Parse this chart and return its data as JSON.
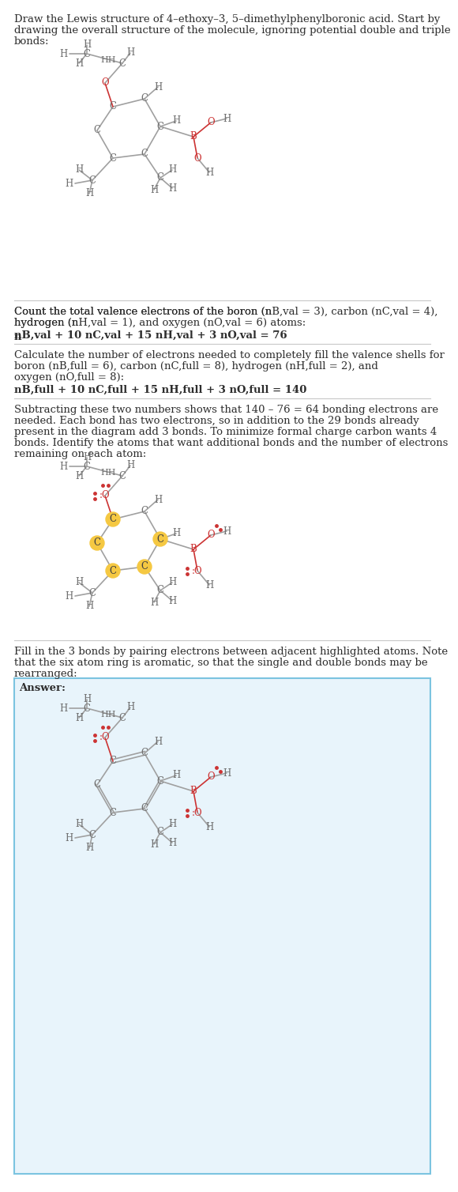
{
  "bg_color": "#ffffff",
  "text_color": "#2d2d2d",
  "bond_color": "#a0a0a0",
  "atom_C_color": "#707070",
  "atom_H_color": "#707070",
  "atom_O_color": "#cc3333",
  "atom_B_color": "#cc3333",
  "highlight_color": "#f5c842",
  "answer_bg": "#e8f4fb",
  "answer_border": "#7bc4e0",
  "title_text": "Draw the Lewis structure of 4–ethoxy–3, 5–dimethylphenylboronic acid. Start by drawing the overall structure of the molecule, ignoring potential double and triple bonds:",
  "section2_text": "Count the total valence electrons of the boron (n_B,val = 3), carbon (n_C,val = 4), hydrogen (n_H,val = 1), and oxygen (n_O,val = 6) atoms:",
  "section2_formula": "n_B,val + 10 n_C,val + 15 n_H,val + 3 n_O,val = 76",
  "section3_text": "Calculate the number of electrons needed to completely fill the valence shells for boron (n_B,full = 6), carbon (n_C,full = 8), hydrogen (n_H,full = 2), and oxygen (n_O,full = 8):",
  "section3_formula": "n_B,full + 10 n_C,full + 15 n_H,full + 3 n_O,full = 140",
  "section4_text": "Subtracting these two numbers shows that 140 – 76 = 64 bonding electrons are needed. Each bond has two electrons, so in addition to the 29 bonds already present in the diagram add 3 bonds. To minimize formal charge carbon wants 4 bonds. Identify the atoms that want additional bonds and the number of electrons remaining on each atom:",
  "section5_text": "Fill in the 3 bonds by pairing electrons between adjacent highlighted atoms. Note that the six atom ring is aromatic, so that the single and double bonds may be rearranged:",
  "answer_label": "Answer:"
}
